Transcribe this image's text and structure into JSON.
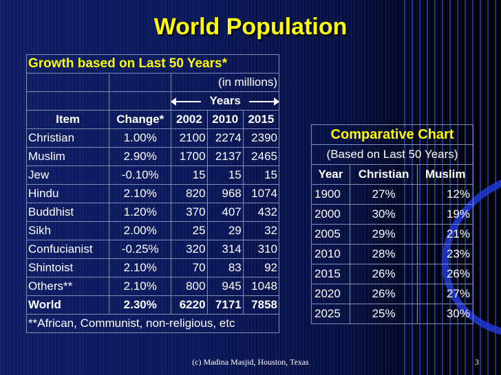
{
  "title": "World Population",
  "main_table": {
    "heading": "Growth based on Last 50 Years*",
    "units": "(in millions)",
    "years_label": "Years",
    "columns": [
      "Item",
      "Change*",
      "2002",
      "2010",
      "2015"
    ],
    "rows": [
      {
        "item": "Christian",
        "change": "1.00%",
        "y2002": "2100",
        "y2010": "2274",
        "y2015": "2390"
      },
      {
        "item": "Muslim",
        "change": "2.90%",
        "y2002": "1700",
        "y2010": "2137",
        "y2015": "2465"
      },
      {
        "item": "Jew",
        "change": "-0.10%",
        "y2002": "15",
        "y2010": "15",
        "y2015": "15"
      },
      {
        "item": "Hindu",
        "change": "2.10%",
        "y2002": "820",
        "y2010": "968",
        "y2015": "1074"
      },
      {
        "item": "Buddhist",
        "change": "1.20%",
        "y2002": "370",
        "y2010": "407",
        "y2015": "432"
      },
      {
        "item": "Sikh",
        "change": "2.00%",
        "y2002": "25",
        "y2010": "29",
        "y2015": "32"
      },
      {
        "item": "Confucianist",
        "change": "-0.25%",
        "y2002": "320",
        "y2010": "314",
        "y2015": "310"
      },
      {
        "item": "Shintoist",
        "change": "2.10%",
        "y2002": "70",
        "y2010": "83",
        "y2015": "92"
      },
      {
        "item": "Others**",
        "change": "2.10%",
        "y2002": "800",
        "y2010": "945",
        "y2015": "1048"
      }
    ],
    "total": {
      "item": "World",
      "change": "2.30%",
      "y2002": "6220",
      "y2010": "7171",
      "y2015": "7858"
    },
    "footnote": "**African, Communist, non-religious, etc"
  },
  "comparative_table": {
    "heading": "Comparative Chart",
    "subheading": "(Based on Last 50 Years)",
    "columns": [
      "Year",
      "Christian",
      "Muslim"
    ],
    "rows": [
      {
        "year": "1900",
        "christian": "27%",
        "muslim": "12%"
      },
      {
        "year": "2000",
        "christian": "30%",
        "muslim": "19%"
      },
      {
        "year": "2005",
        "christian": "29%",
        "muslim": "21%"
      },
      {
        "year": "2010",
        "christian": "28%",
        "muslim": "23%"
      },
      {
        "year": "2015",
        "christian": "26%",
        "muslim": "26%"
      },
      {
        "year": "2020",
        "christian": "26%",
        "muslim": "27%"
      },
      {
        "year": "2025",
        "christian": "25%",
        "muslim": "30%"
      }
    ]
  },
  "footer": "(c) Madina Masjid, Houston, Texas",
  "page_number": "3",
  "colors": {
    "title": "#ffff00",
    "text": "#ffffff",
    "background": "#0b1859"
  }
}
